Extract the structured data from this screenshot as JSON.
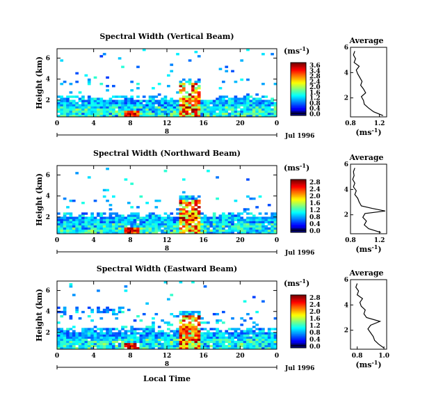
{
  "chart_data": [
    {
      "type": "heatmap",
      "title": "Spectral Width (Vertical Beam)",
      "ylabel": "Height (km)",
      "x_ticks": [
        "0",
        "4",
        "8",
        "12",
        "16",
        "20",
        "0"
      ],
      "y_ticks": [
        "2",
        "4",
        "6"
      ],
      "date_day": "8",
      "date_label": "Jul 1996",
      "colorbar": {
        "unit": "(ms",
        "unit_sup": "-1",
        "unit_close": ")",
        "ticks": [
          "3.6",
          "3.4",
          "2.8",
          "2.4",
          "2.0",
          "1.6",
          "1.2",
          "0.8",
          "0.4",
          "0.0"
        ]
      },
      "average": {
        "title": "Average",
        "xlabel": "(ms",
        "xlabel_sup": "-1",
        "xlabel_close": ")",
        "x_ticks": [
          "0.8",
          "1.2"
        ],
        "y_ticks": [
          "2",
          "4",
          "6"
        ],
        "xlim": [
          0.8,
          1.3
        ],
        "ylim": [
          0.5,
          6
        ],
        "heights": [
          0.6,
          0.9,
          1.2,
          1.5,
          1.8,
          2.1,
          2.4,
          2.7,
          3.0,
          3.3,
          3.6,
          3.9,
          4.2,
          4.5,
          4.8,
          5.1,
          5.4,
          5.7
        ],
        "values": [
          1.25,
          1.12,
          1.05,
          0.99,
          0.98,
          0.95,
          1.01,
          0.98,
          0.94,
          0.96,
          0.93,
          0.9,
          0.88,
          0.92,
          0.85,
          0.87,
          0.84,
          0.86
        ]
      }
    },
    {
      "type": "heatmap",
      "title": "Spectral Width (Northward Beam)",
      "ylabel": "Height (km)",
      "x_ticks": [
        "0",
        "4",
        "8",
        "12",
        "16",
        "20",
        "0"
      ],
      "y_ticks": [
        "2",
        "4",
        "6"
      ],
      "date_day": "8",
      "date_label": "Jul 1996",
      "colorbar": {
        "unit": "(ms",
        "unit_sup": "-1",
        "unit_close": ")",
        "ticks": [
          "2.8",
          "2.4",
          "2.0",
          "1.6",
          "1.2",
          "0.8",
          "0.4",
          "0.0"
        ]
      },
      "average": {
        "title": "Average",
        "xlabel": "(ms",
        "xlabel_sup": "-1",
        "xlabel_close": ")",
        "x_ticks": [
          "0.8",
          "1.2"
        ],
        "y_ticks": [
          "2",
          "4",
          "6"
        ],
        "xlim": [
          0.8,
          1.3
        ],
        "ylim": [
          0.5,
          6
        ],
        "heights": [
          0.6,
          0.9,
          1.2,
          1.5,
          1.8,
          2.1,
          2.3,
          2.5,
          2.7,
          3.0,
          3.3,
          3.6,
          3.9,
          4.2,
          4.5,
          4.8,
          5.1,
          5.4,
          5.7
        ],
        "values": [
          1.22,
          1.05,
          0.99,
          1.02,
          0.97,
          1.0,
          1.28,
          1.1,
          0.95,
          0.92,
          0.9,
          0.86,
          0.88,
          0.84,
          0.86,
          0.83,
          0.85,
          0.84,
          0.86
        ]
      }
    },
    {
      "type": "heatmap",
      "title": "Spectral Width (Eastward Beam)",
      "ylabel": "Height (km)",
      "x_ticks": [
        "0",
        "4",
        "8",
        "12",
        "16",
        "20",
        "0"
      ],
      "y_ticks": [
        "2",
        "4",
        "6"
      ],
      "xlabel": "Local Time",
      "date_day": "8",
      "date_label": "Jul 1996",
      "colorbar": {
        "unit": "(ms",
        "unit_sup": "-1",
        "unit_close": ")",
        "ticks": [
          "2.8",
          "2.4",
          "2.0",
          "1.6",
          "1.2",
          "0.8",
          "0.4",
          "0.0"
        ]
      },
      "average": {
        "title": "Average",
        "xlabel": "(ms",
        "xlabel_sup": "-1",
        "xlabel_close": ")",
        "x_ticks": [
          "0.8",
          "1.0"
        ],
        "y_ticks": [
          "2",
          "4",
          "6"
        ],
        "xlim": [
          0.75,
          1.02
        ],
        "ylim": [
          0.5,
          6
        ],
        "heights": [
          0.6,
          0.9,
          1.2,
          1.5,
          1.8,
          2.1,
          2.4,
          2.7,
          3.0,
          3.3,
          3.6,
          3.9,
          4.2,
          4.5,
          4.8,
          5.1,
          5.4,
          5.7
        ],
        "values": [
          1.0,
          0.96,
          0.93,
          0.92,
          0.9,
          0.88,
          0.9,
          0.97,
          0.87,
          0.85,
          0.86,
          0.83,
          0.82,
          0.84,
          0.8,
          0.81,
          0.79,
          0.8
        ]
      }
    }
  ]
}
